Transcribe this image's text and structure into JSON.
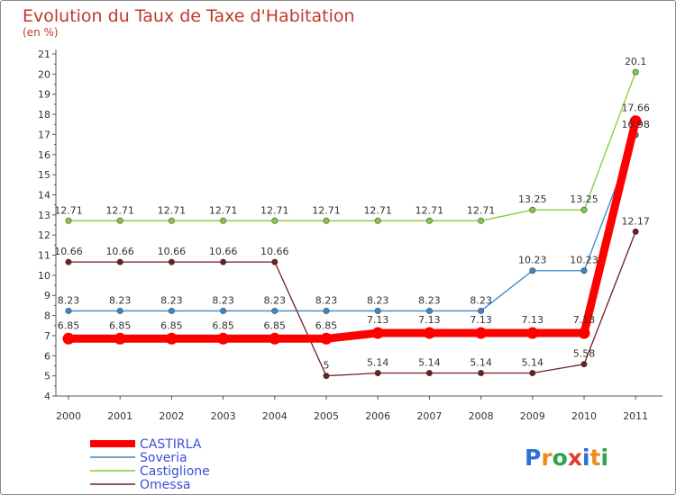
{
  "chart_data": {
    "type": "line",
    "title": "Evolution du Taux de Taxe d'Habitation",
    "subtitle": "(en %)",
    "xlabel": "",
    "ylabel": "(en %)",
    "ylim": [
      4,
      21
    ],
    "yticks": [
      "4",
      "5",
      "6",
      "7",
      "8",
      "9",
      "10",
      "11",
      "12",
      "13",
      "14",
      "15",
      "16",
      "17",
      "18",
      "19",
      "20",
      "21"
    ],
    "categories": [
      "2000",
      "2001",
      "2002",
      "2003",
      "2004",
      "2005",
      "2006",
      "2007",
      "2008",
      "2009",
      "2010",
      "2011"
    ],
    "grid": false,
    "legend_position": "bottom-left",
    "series": [
      {
        "name": "CASTIRLA",
        "color": "#ff0000",
        "values": [
          6.85,
          6.85,
          6.85,
          6.85,
          6.85,
          6.85,
          7.13,
          7.13,
          7.13,
          7.13,
          7.13,
          17.66
        ],
        "labels": [
          "6.85",
          "6.85",
          "6.85",
          "6.85",
          "6.85",
          "6.85",
          "7.13",
          "7.13",
          "7.13",
          "7.13",
          "7.13",
          "17.66"
        ]
      },
      {
        "name": "Soveria",
        "color": "#3a87c8",
        "values": [
          8.23,
          8.23,
          8.23,
          8.23,
          8.23,
          8.23,
          8.23,
          8.23,
          8.23,
          10.23,
          10.23,
          16.98
        ],
        "labels": [
          "8.23",
          "8.23",
          "8.23",
          "8.23",
          "8.23",
          "8.23",
          "8.23",
          "8.23",
          "8.23",
          "10.23",
          "10.23",
          "16.98"
        ]
      },
      {
        "name": "Castiglione",
        "color": "#80cc3f",
        "values": [
          12.71,
          12.71,
          12.71,
          12.71,
          12.71,
          12.71,
          12.71,
          12.71,
          12.71,
          13.25,
          13.25,
          20.1
        ],
        "labels": [
          "12.71",
          "12.71",
          "12.71",
          "12.71",
          "12.71",
          "12.71",
          "12.71",
          "12.71",
          "12.71",
          "13.25",
          "13.25",
          "20.1"
        ]
      },
      {
        "name": "Omessa",
        "color": "#6e1d21",
        "values": [
          10.66,
          10.66,
          10.66,
          10.66,
          10.66,
          5,
          5.14,
          5.14,
          5.14,
          5.14,
          5.58,
          12.17
        ],
        "labels": [
          "10.66",
          "10.66",
          "10.66",
          "10.66",
          "10.66",
          "5",
          "5.14",
          "5.14",
          "5.14",
          "5.14",
          "5.58",
          "12.17"
        ]
      }
    ]
  },
  "logo": {
    "letters": [
      "P",
      "r",
      "o",
      "x",
      "i",
      "t",
      "i"
    ],
    "colors": [
      "#2e6fd8",
      "#f08a1c",
      "#2ea34a",
      "#e23b2e",
      "#2e6fd8",
      "#f08a1c",
      "#2ea34a"
    ]
  },
  "colors": {
    "axis": "#555555",
    "title": "#c0392b",
    "legend_text": "#3a4fd6"
  }
}
